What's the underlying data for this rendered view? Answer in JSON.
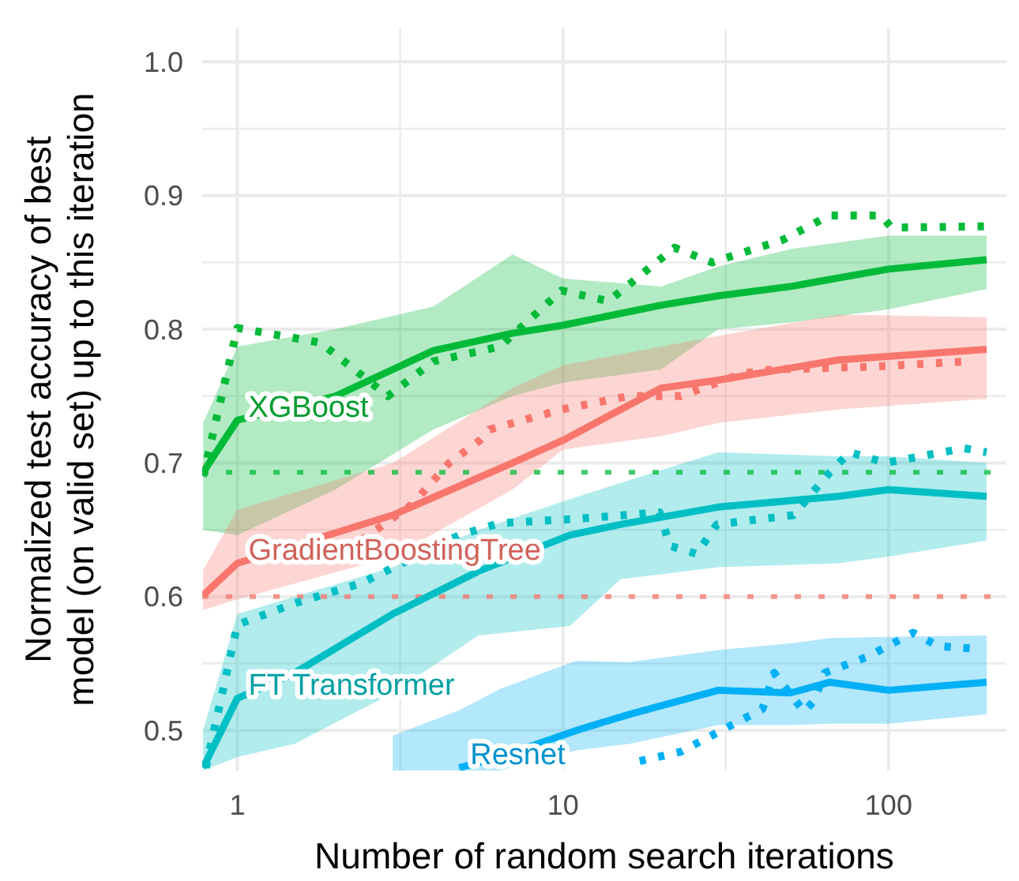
{
  "chart_data": {
    "type": "line",
    "xlabel": "Number of random search iterations",
    "ylabel": "Normalized test accuracy of best\nmodel (on valid set) up to this iteration",
    "log": "x",
    "grid": true,
    "xlim": [
      0.78,
      230
    ],
    "ylim": [
      0.47,
      1.025
    ],
    "xticks": [
      1,
      {
        "value": 3.162,
        "label": null
      },
      10,
      {
        "value": 31.62,
        "label": null
      },
      100
    ],
    "yticks": [
      {
        "value": 0.5,
        "label": "0.5"
      },
      {
        "value": 0.55,
        "label": null
      },
      {
        "value": 0.6,
        "label": "0.6"
      },
      {
        "value": 0.65,
        "label": null
      },
      {
        "value": 0.7,
        "label": "0.7"
      },
      {
        "value": 0.75,
        "label": null
      },
      {
        "value": 0.8,
        "label": "0.8"
      },
      {
        "value": 0.85,
        "label": null
      },
      {
        "value": 0.9,
        "label": "0.9"
      },
      {
        "value": 0.95,
        "label": null
      },
      {
        "value": 1,
        "label": "1.0"
      }
    ],
    "ref_lines": [
      {
        "axis": "y",
        "value": 0.693,
        "color": "#00ba38",
        "line_style": "dotted"
      },
      {
        "axis": "y",
        "value": 0.6,
        "color": "#f8766d",
        "line_style": "dotted"
      }
    ],
    "series": [
      {
        "name": "XGBoost",
        "color": "#00ba38",
        "line_style": "solid",
        "x": [
          0.785,
          1,
          2,
          4,
          7,
          10,
          20,
          30,
          50,
          100,
          200
        ],
        "values": [
          0.693,
          0.732,
          0.75,
          0.784,
          0.797,
          0.803,
          0.818,
          0.825,
          0.832,
          0.845,
          0.852
        ],
        "lower": [
          0.65,
          0.646,
          0.68,
          0.725,
          0.75,
          0.76,
          0.77,
          0.8,
          0.805,
          0.815,
          0.83
        ],
        "upper": [
          0.73,
          0.787,
          0.8,
          0.817,
          0.856,
          0.838,
          0.832,
          0.847,
          0.86,
          0.87,
          0.87
        ]
      },
      {
        "name": "GradientBoostingTree",
        "color": "#f8766d",
        "line_style": "solid",
        "x": [
          0.785,
          1,
          3,
          7,
          10,
          20,
          30,
          70,
          200
        ],
        "values": [
          0.601,
          0.625,
          0.661,
          0.7,
          0.717,
          0.756,
          0.762,
          0.777,
          0.785
        ],
        "lower": [
          0.59,
          0.598,
          0.63,
          0.68,
          0.71,
          0.72,
          0.73,
          0.74,
          0.748
        ],
        "upper": [
          0.62,
          0.665,
          0.7,
          0.756,
          0.773,
          0.787,
          0.795,
          0.811,
          0.809
        ]
      },
      {
        "name": "FT Transformer",
        "color": "#00bfc4",
        "line_style": "solid",
        "x": [
          0.785,
          1,
          1.5,
          3,
          5.5,
          10.5,
          15,
          30,
          70,
          100,
          200
        ],
        "values": [
          0.472,
          0.524,
          0.543,
          0.587,
          0.619,
          0.646,
          0.654,
          0.667,
          0.675,
          0.68,
          0.675
        ],
        "lower": [
          0.47,
          0.48,
          0.49,
          0.528,
          0.571,
          0.578,
          0.613,
          0.622,
          0.625,
          0.63,
          0.642
        ],
        "upper": [
          0.5,
          0.587,
          0.6,
          0.622,
          0.65,
          0.673,
          0.685,
          0.708,
          0.705,
          0.705,
          0.7
        ]
      },
      {
        "name": "Resnet",
        "color": "#00b0f6",
        "line_style": "solid",
        "x": [
          3,
          4.8,
          6.4,
          11,
          16,
          30,
          50,
          66,
          100,
          200
        ],
        "values": [
          null,
          0.472,
          0.48,
          0.5,
          0.512,
          0.53,
          0.528,
          0.536,
          0.53,
          0.536
        ],
        "lower": [
          0.47,
          0.47,
          0.47,
          0.485,
          0.49,
          0.504,
          0.504,
          0.505,
          0.505,
          0.512
        ],
        "upper": [
          0.496,
          0.515,
          0.531,
          0.552,
          0.551,
          0.56,
          0.565,
          0.569,
          0.57,
          0.571
        ]
      },
      {
        "color": "#00ba38",
        "line_style": "dotted",
        "x": [
          0.785,
          1,
          1.8,
          2.9,
          4,
          6.4,
          9.9,
          13.8,
          22,
          28.7,
          47.5,
          65.6,
          95,
          102,
          200
        ],
        "values": [
          0.69,
          0.801,
          0.79,
          0.75,
          0.776,
          0.787,
          0.829,
          0.821,
          0.861,
          0.85,
          0.867,
          0.885,
          0.885,
          0.876,
          0.877
        ]
      },
      {
        "color": "#f8766d",
        "line_style": "dotted",
        "x": [
          2.4,
          3.44,
          4.47,
          5.56,
          5.95,
          9.9,
          15.9,
          23,
          35.7,
          44.6,
          89,
          177
        ],
        "values": [
          0.642,
          0.669,
          0.7,
          0.717,
          0.725,
          0.74,
          0.75,
          0.75,
          0.767,
          0.77,
          0.772,
          0.776
        ]
      },
      {
        "color": "#00bfc4",
        "line_style": "dotted",
        "x": [
          0.8,
          1,
          1.5,
          2.4,
          4.8,
          6.4,
          10.7,
          19.8,
          21.3,
          25.7,
          29.7,
          51,
          66,
          76,
          98,
          170,
          200
        ],
        "values": [
          0.472,
          0.579,
          0.595,
          0.61,
          0.646,
          0.655,
          0.658,
          0.663,
          0.638,
          0.632,
          0.654,
          0.661,
          0.693,
          0.708,
          0.7,
          0.711,
          0.708
        ]
      },
      {
        "color": "#00b0f6",
        "line_style": "dotted",
        "x": [
          17.2,
          23,
          33,
          41,
          44.5,
          55,
          59,
          63.6,
          86,
          119,
          142,
          185
        ],
        "values": [
          0.477,
          0.484,
          0.504,
          0.516,
          0.543,
          0.514,
          0.522,
          0.543,
          0.555,
          0.573,
          0.563,
          0.561
        ]
      }
    ]
  }
}
